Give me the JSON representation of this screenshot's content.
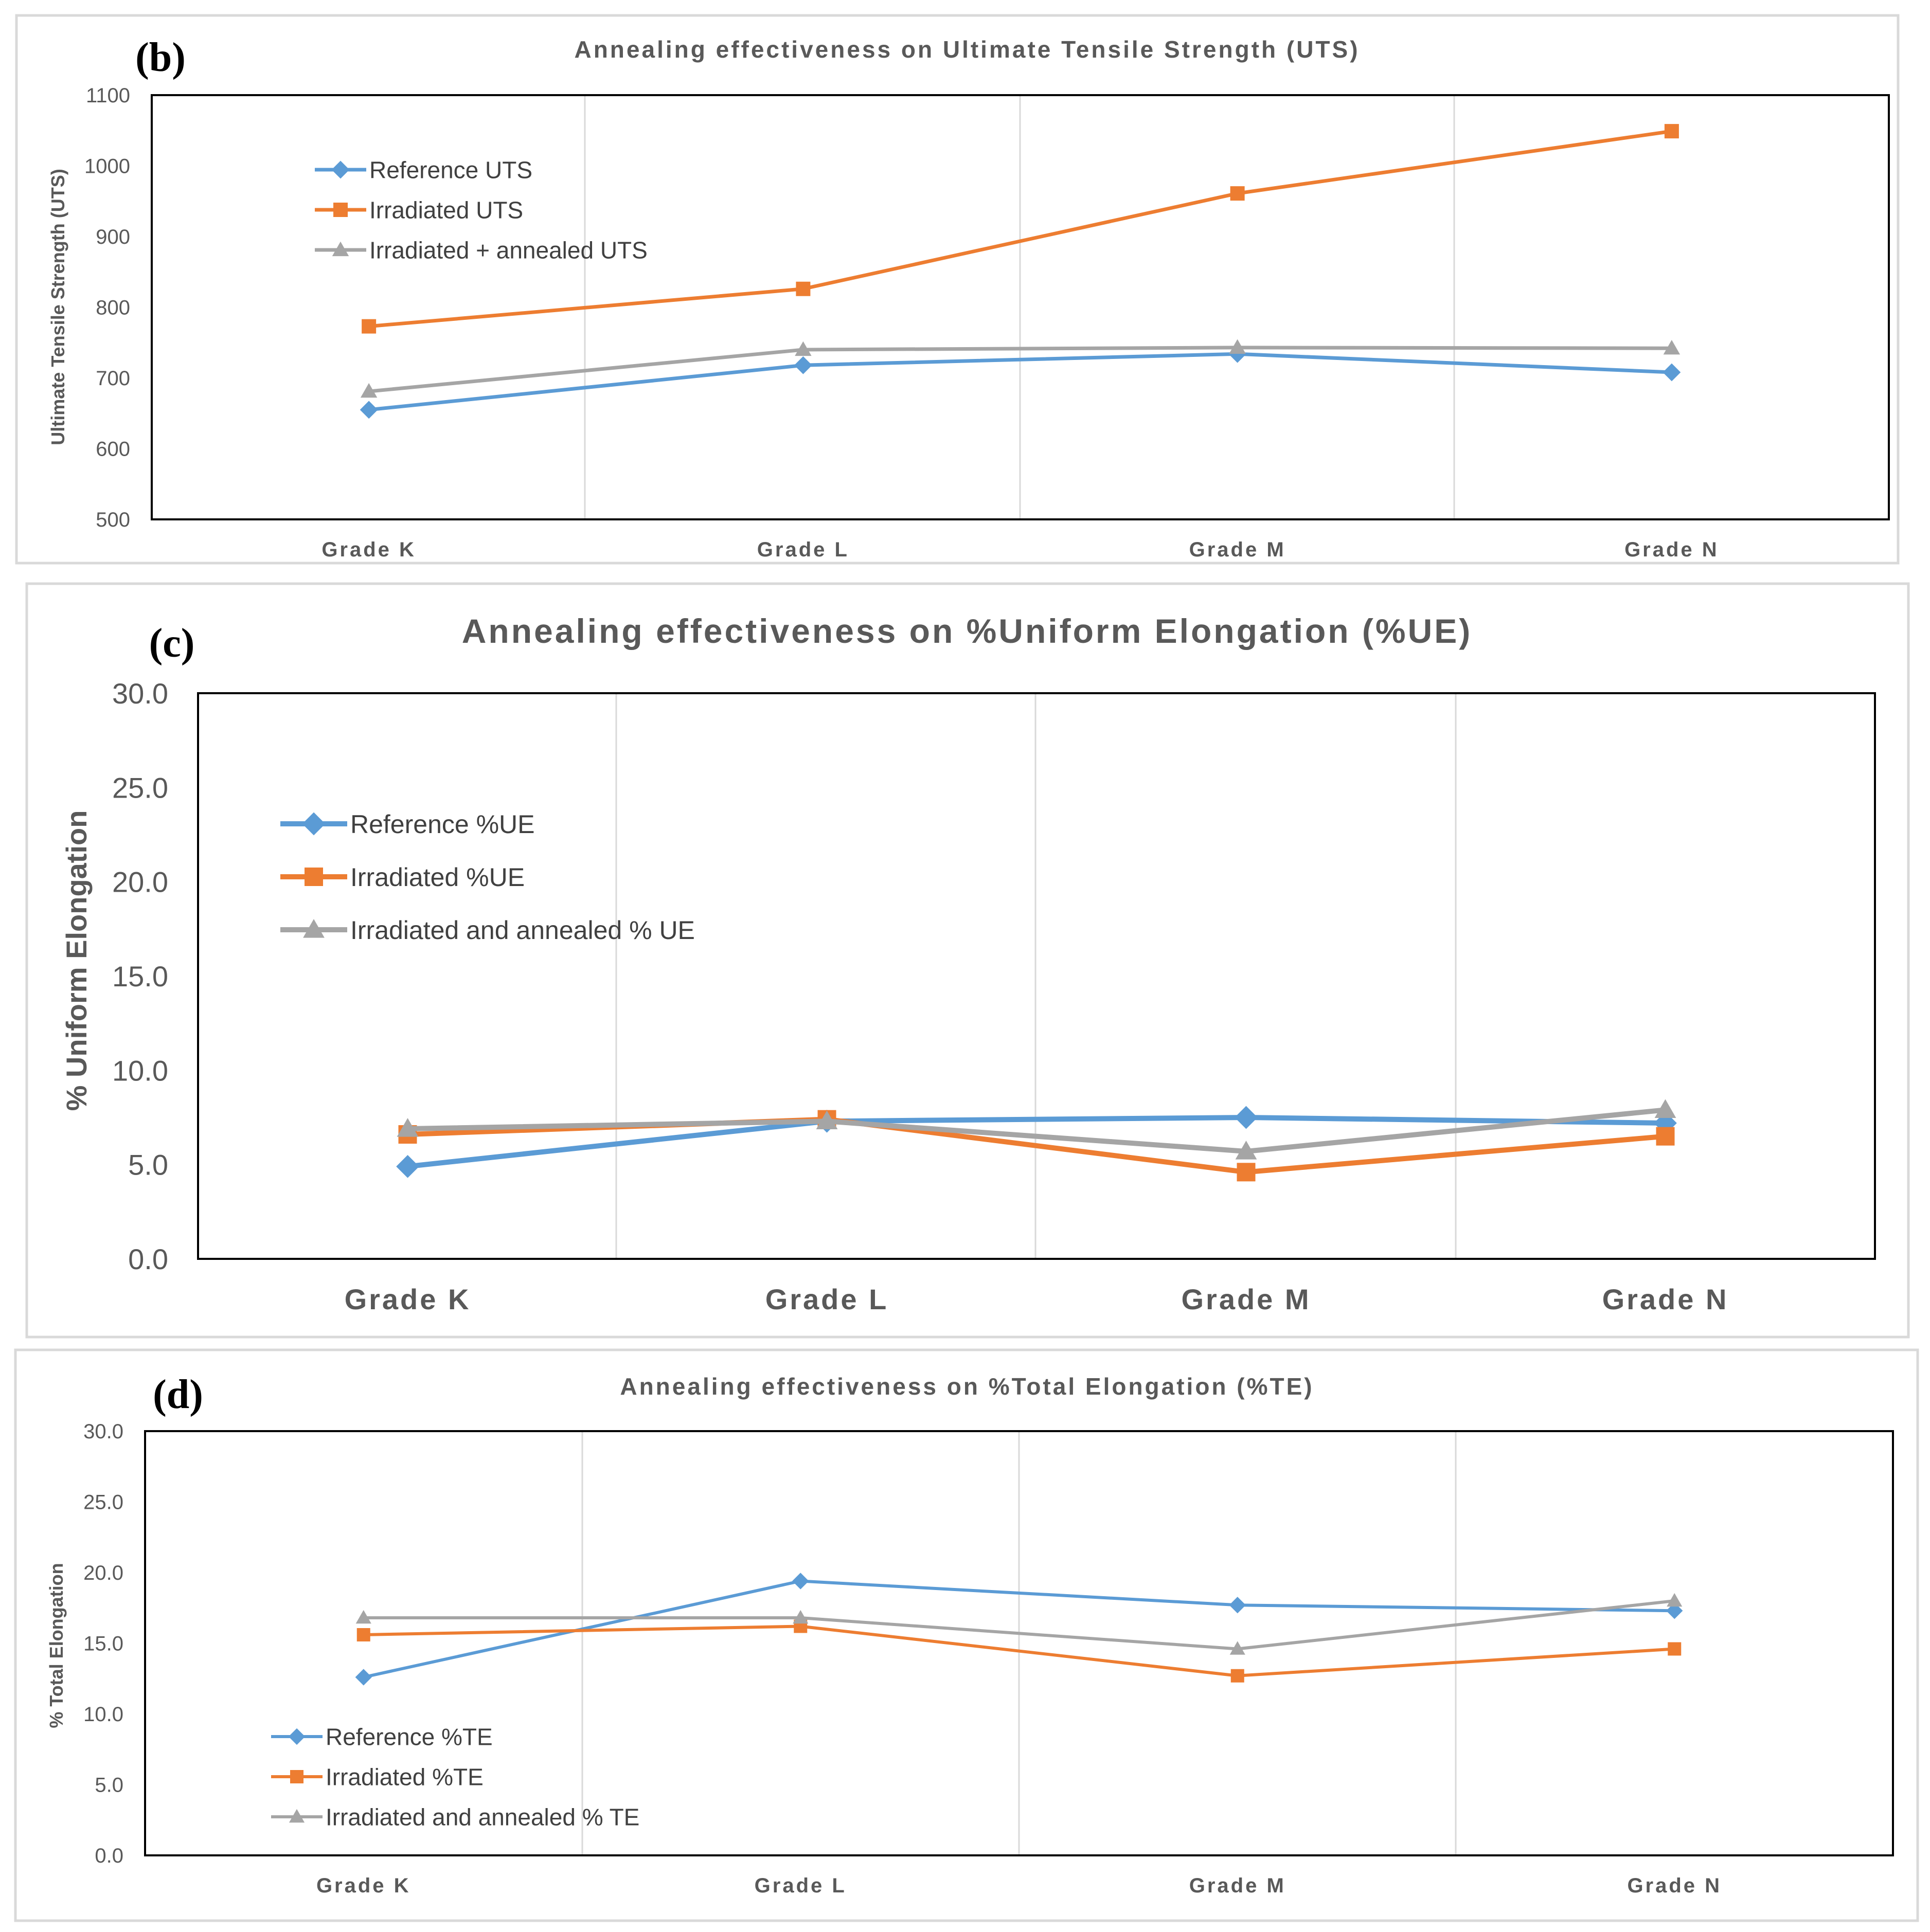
{
  "colors": {
    "reference": "#5b9bd5",
    "irradiated": "#ed7d31",
    "annealed": "#a5a5a5"
  },
  "chart_data": [
    {
      "type": "line",
      "panel_label": "(b)",
      "title": "Annealing effectiveness on Ultimate Tensile Strength (UTS)",
      "xlabel": "",
      "ylabel": "Ultimate Tensile Strength (UTS)",
      "categories": [
        "Grade K",
        "Grade L",
        "Grade M",
        "Grade N"
      ],
      "ylim": [
        500,
        1100
      ],
      "yticks": [
        "500",
        "600",
        "700",
        "800",
        "900",
        "1000",
        "1100"
      ],
      "legend_position": "top-left",
      "grid": "vertical",
      "series": [
        {
          "name": "Reference UTS",
          "marker": "diamond",
          "values": [
            655,
            718,
            734,
            708
          ]
        },
        {
          "name": "Irradiated UTS",
          "marker": "square",
          "values": [
            773,
            826,
            961,
            1049
          ]
        },
        {
          "name": "Irradiated + annealed UTS",
          "marker": "triangle",
          "values": [
            681,
            740,
            743,
            742
          ]
        }
      ]
    },
    {
      "type": "line",
      "panel_label": "(c)",
      "title": "Annealing effectiveness on %Uniform Elongation (%UE)",
      "xlabel": "",
      "ylabel": "% Uniform Elongation",
      "categories": [
        "Grade K",
        "Grade L",
        "Grade M",
        "Grade N"
      ],
      "ylim": [
        0,
        30
      ],
      "yticks": [
        "0.0",
        "5.0",
        "10.0",
        "15.0",
        "20.0",
        "25.0",
        "30.0"
      ],
      "legend_position": "top-left",
      "grid": "vertical",
      "series": [
        {
          "name": "Reference %UE",
          "marker": "diamond",
          "values": [
            4.9,
            7.3,
            7.5,
            7.2
          ]
        },
        {
          "name": "Irradiated %UE",
          "marker": "square",
          "values": [
            6.6,
            7.4,
            4.6,
            6.5
          ]
        },
        {
          "name": "Irradiated and annealed % UE",
          "marker": "triangle",
          "values": [
            6.9,
            7.3,
            5.7,
            7.9
          ]
        }
      ]
    },
    {
      "type": "line",
      "panel_label": "(d)",
      "title": "Annealing effectiveness on %Total Elongation (%TE)",
      "xlabel": "",
      "ylabel": "% Total Elongation",
      "categories": [
        "Grade K",
        "Grade L",
        "Grade M",
        "Grade N"
      ],
      "ylim": [
        0,
        30
      ],
      "yticks": [
        "0.0",
        "5.0",
        "10.0",
        "15.0",
        "20.0",
        "25.0",
        "30.0"
      ],
      "legend_position": "bottom-left",
      "grid": "vertical",
      "series": [
        {
          "name": "Reference %TE",
          "marker": "diamond",
          "values": [
            12.6,
            19.4,
            17.7,
            17.3
          ]
        },
        {
          "name": "Irradiated %TE",
          "marker": "square",
          "values": [
            15.6,
            16.2,
            12.7,
            14.6
          ]
        },
        {
          "name": "Irradiated and annealed % TE",
          "marker": "triangle",
          "values": [
            16.8,
            16.8,
            14.6,
            18.0
          ]
        }
      ]
    }
  ]
}
